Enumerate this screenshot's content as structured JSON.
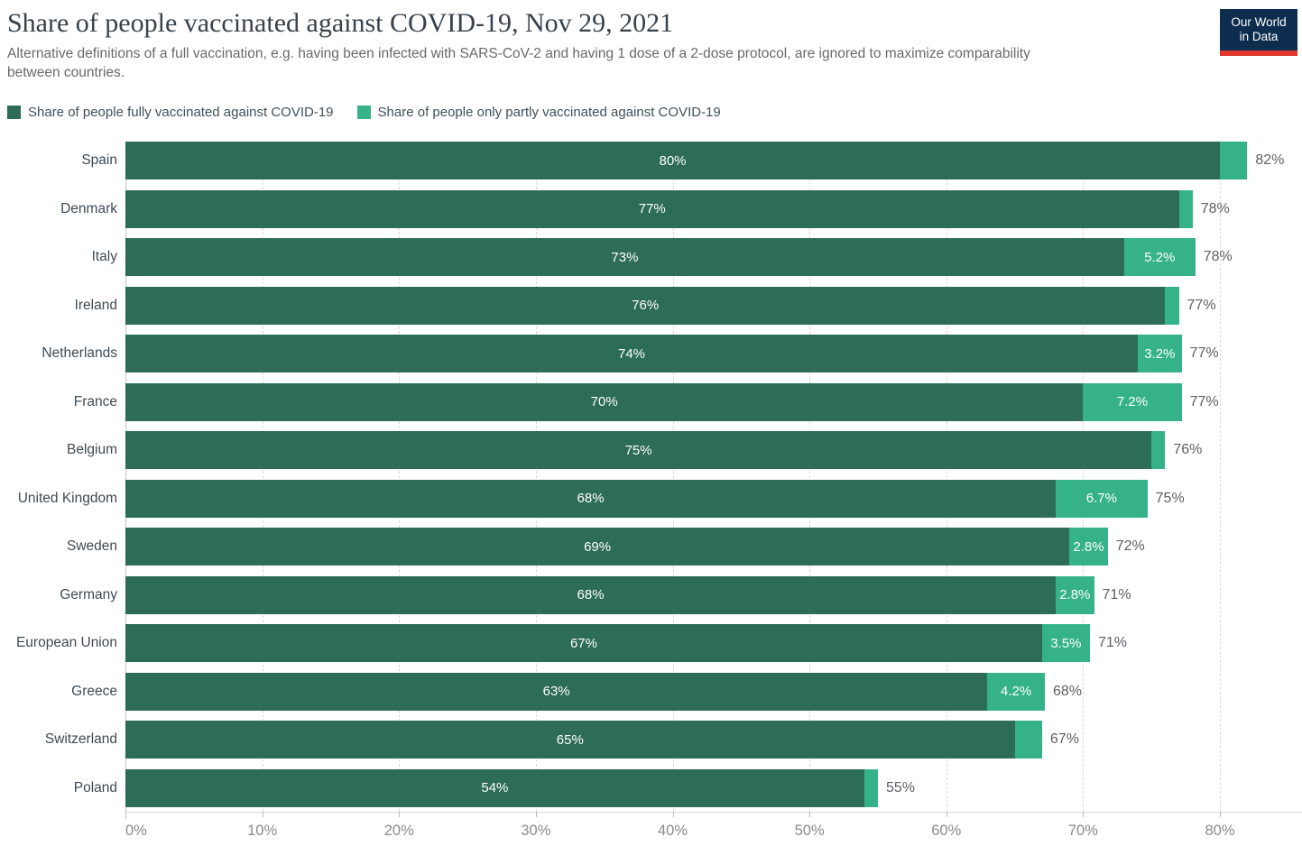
{
  "header": {
    "title": "Share of people vaccinated against COVID-19, Nov 29, 2021",
    "subtitle": "Alternative definitions of a full vaccination, e.g. having been infected with SARS-CoV-2 and having 1 dose of a 2-dose protocol, are ignored to maximize comparability between countries.",
    "logo": {
      "line1": "Our World",
      "line2": "in Data"
    }
  },
  "colors": {
    "fully": "#2d6c56",
    "partly": "#35b288",
    "logo_bg": "#0d2d4e",
    "logo_underline": "#e0362c"
  },
  "legend": [
    {
      "label": "Share of people fully vaccinated against COVID-19",
      "color": "#2d6c56"
    },
    {
      "label": "Share of people only partly vaccinated against COVID-19",
      "color": "#35b288"
    }
  ],
  "chart_data": {
    "type": "bar",
    "orientation": "horizontal",
    "stacked": true,
    "title": "Share of people vaccinated against COVID-19, Nov 29, 2021",
    "xlabel": "",
    "ylabel": "",
    "grid": "dashed-vertical",
    "legend_position": "top-left",
    "axis": {
      "tick_values": [
        0,
        10,
        20,
        30,
        40,
        50,
        60,
        70,
        80
      ],
      "tick_labels": [
        "0%",
        "10%",
        "20%",
        "30%",
        "40%",
        "50%",
        "60%",
        "70%",
        "80%"
      ],
      "area_max": 86
    },
    "series_names": [
      "Share of people fully vaccinated against COVID-19",
      "Share of people only partly vaccinated against COVID-19"
    ],
    "rows": [
      {
        "country": "Spain",
        "fully": 80,
        "partly": 2,
        "fully_label": "80%",
        "partly_label": "",
        "total": 82,
        "total_label": "82%"
      },
      {
        "country": "Denmark",
        "fully": 77,
        "partly": 1,
        "fully_label": "77%",
        "partly_label": "",
        "total": 78,
        "total_label": "78%"
      },
      {
        "country": "Italy",
        "fully": 73,
        "partly": 5.2,
        "fully_label": "73%",
        "partly_label": "5.2%",
        "total": 78,
        "total_label": "78%"
      },
      {
        "country": "Ireland",
        "fully": 76,
        "partly": 1,
        "fully_label": "76%",
        "partly_label": "",
        "total": 77,
        "total_label": "77%"
      },
      {
        "country": "Netherlands",
        "fully": 74,
        "partly": 3.2,
        "fully_label": "74%",
        "partly_label": "3.2%",
        "total": 77,
        "total_label": "77%"
      },
      {
        "country": "France",
        "fully": 70,
        "partly": 7.2,
        "fully_label": "70%",
        "partly_label": "7.2%",
        "total": 77,
        "total_label": "77%"
      },
      {
        "country": "Belgium",
        "fully": 75,
        "partly": 1,
        "fully_label": "75%",
        "partly_label": "",
        "total": 76,
        "total_label": "76%"
      },
      {
        "country": "United Kingdom",
        "fully": 68,
        "partly": 6.7,
        "fully_label": "68%",
        "partly_label": "6.7%",
        "total": 75,
        "total_label": "75%"
      },
      {
        "country": "Sweden",
        "fully": 69,
        "partly": 2.8,
        "fully_label": "69%",
        "partly_label": "2.8%",
        "total": 72,
        "total_label": "72%"
      },
      {
        "country": "Germany",
        "fully": 68,
        "partly": 2.8,
        "fully_label": "68%",
        "partly_label": "2.8%",
        "total": 71,
        "total_label": "71%"
      },
      {
        "country": "European Union",
        "fully": 67,
        "partly": 3.5,
        "fully_label": "67%",
        "partly_label": "3.5%",
        "total": 71,
        "total_label": "71%"
      },
      {
        "country": "Greece",
        "fully": 63,
        "partly": 4.2,
        "fully_label": "63%",
        "partly_label": "4.2%",
        "total": 68,
        "total_label": "68%"
      },
      {
        "country": "Switzerland",
        "fully": 65,
        "partly": 2,
        "fully_label": "65%",
        "partly_label": "",
        "total": 67,
        "total_label": "67%"
      },
      {
        "country": "Poland",
        "fully": 54,
        "partly": 1,
        "fully_label": "54%",
        "partly_label": "",
        "total": 55,
        "total_label": "55%"
      }
    ]
  }
}
